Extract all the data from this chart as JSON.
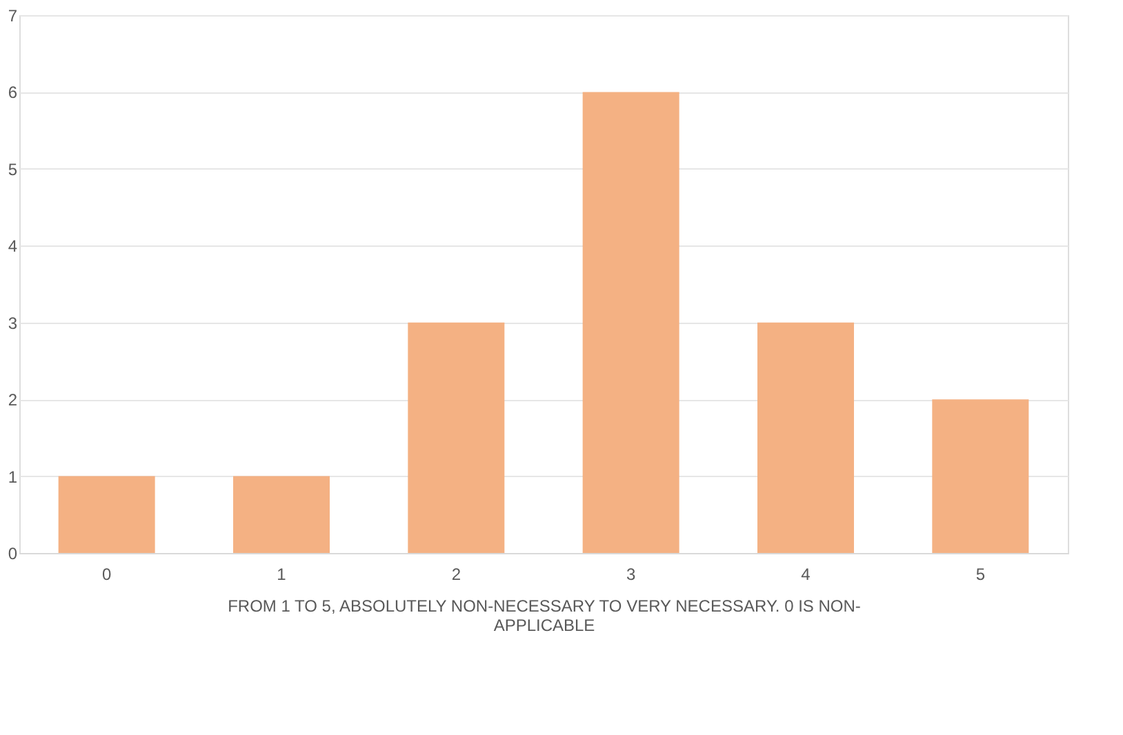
{
  "chart_data": {
    "type": "bar",
    "xlabel": "FROM 1 TO 5, ABSOLUTELY NON-NECESSARY TO VERY NECESSARY. 0 IS NON-APPLICABLE",
    "categories": [
      "0",
      "1",
      "2",
      "3",
      "4",
      "5"
    ],
    "values": [
      1,
      1,
      3,
      6,
      3,
      2
    ],
    "color": "#f4b183",
    "ylim": [
      0,
      7
    ],
    "yticks": [
      0,
      1,
      2,
      3,
      4,
      5,
      6,
      7
    ],
    "grid": "y"
  }
}
